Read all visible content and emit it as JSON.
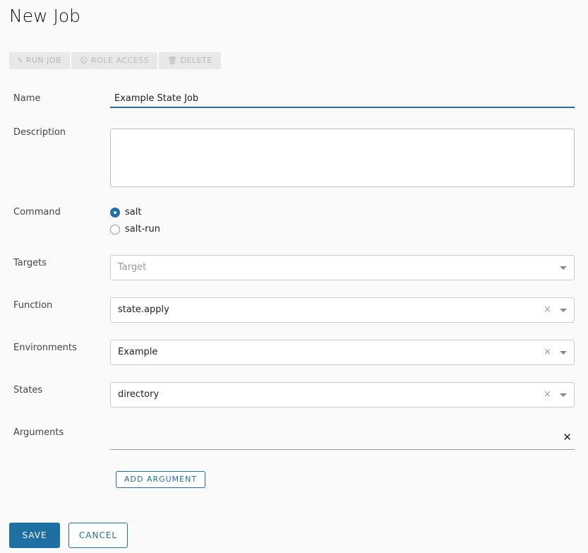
{
  "title": "New Job",
  "toolbar": {
    "run": "RUN JOB",
    "role": "ROLE ACCESS",
    "delete": "DELETE"
  },
  "form": {
    "name_label": "Name",
    "name_value": "Example State Job",
    "description_label": "Description",
    "description_value": "",
    "command_label": "Command",
    "command_options": [
      "salt",
      "salt-run"
    ],
    "command_selected": "salt",
    "targets_label": "Targets",
    "targets_placeholder": "Target",
    "function_label": "Function",
    "function_value": "state.apply",
    "environments_label": "Environments",
    "environments_value": "Example",
    "states_label": "States",
    "states_value": "directory",
    "arguments_label": "Arguments",
    "add_argument": "ADD ARGUMENT",
    "clear": "×",
    "remove": "✕"
  },
  "actions": {
    "save": "SAVE",
    "cancel": "CANCEL"
  },
  "colors": {
    "accent": "#1e6fa3"
  }
}
